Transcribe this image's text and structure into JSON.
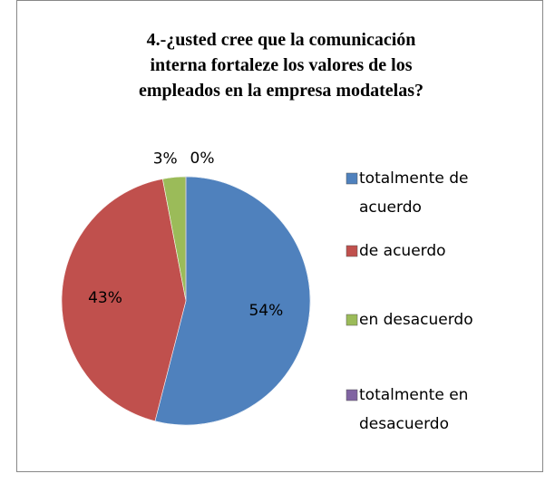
{
  "chart_data": {
    "type": "pie",
    "title": "4.-¿usted cree que la comunicación interna fortaleze los valores de los empleados en la empresa modatelas?",
    "categories": [
      "totalmente de acuerdo",
      "de acuerdo",
      "en desacuerdo",
      "totalmente en desacuerdo"
    ],
    "values": [
      54,
      43,
      3,
      0
    ],
    "value_labels": [
      "54%",
      "43%",
      "3%",
      "0%"
    ],
    "colors": [
      "#4f81bd",
      "#c0504d",
      "#9bbb59",
      "#8064a2"
    ],
    "legend": "right"
  }
}
